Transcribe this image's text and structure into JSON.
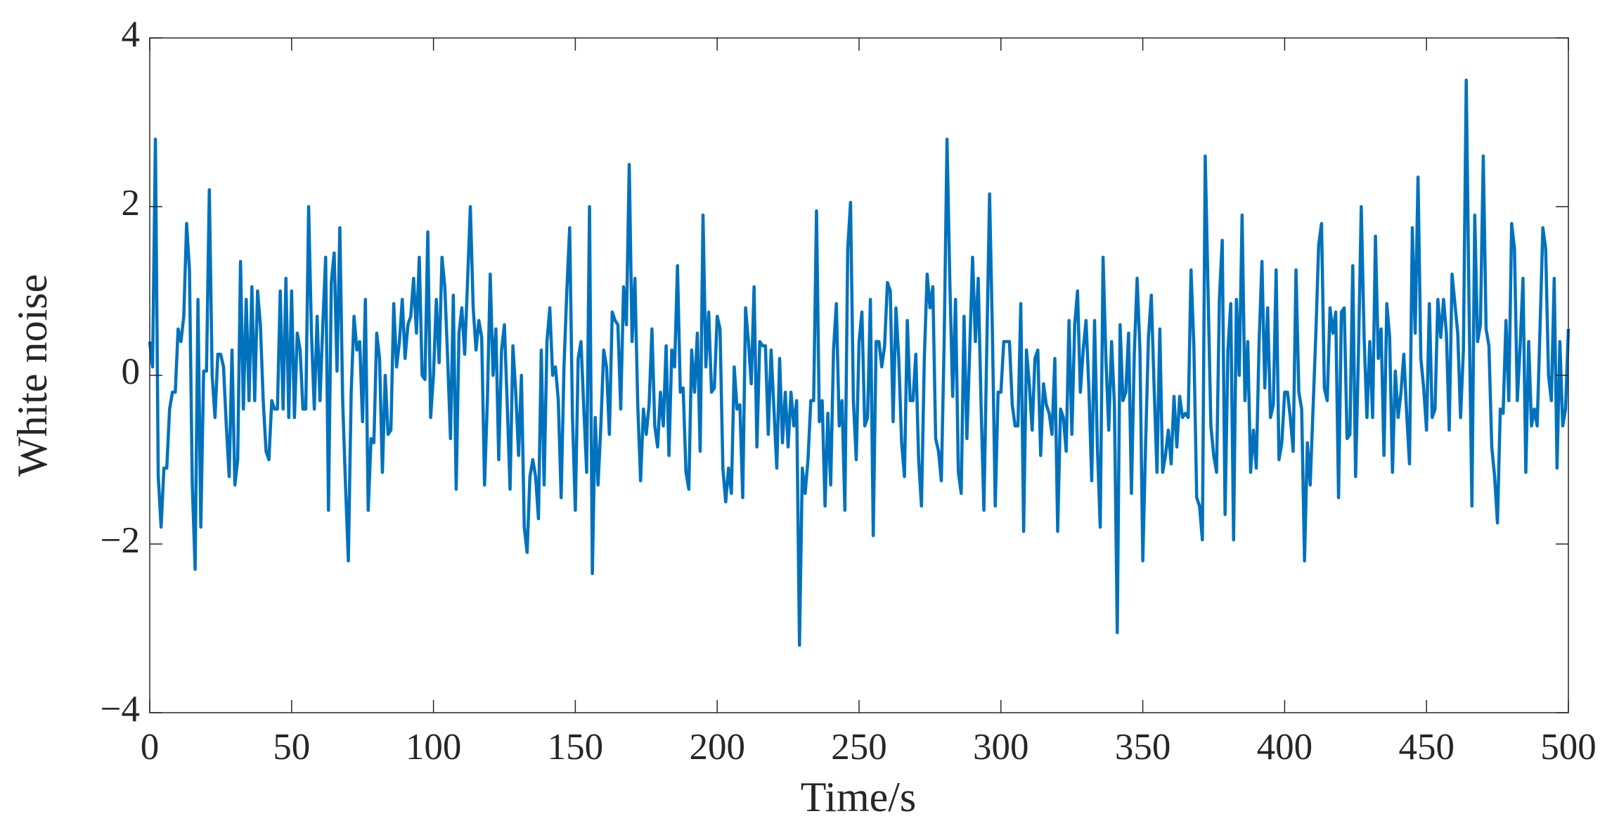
{
  "chart_data": {
    "type": "line",
    "xlabel": "Time/s",
    "ylabel": "White noise",
    "xlim": [
      0,
      500
    ],
    "ylim": [
      -4,
      4
    ],
    "xticks": [
      0,
      50,
      100,
      150,
      200,
      250,
      300,
      350,
      400,
      450,
      500
    ],
    "yticks": [
      {
        "value": -4,
        "label": "−4"
      },
      {
        "value": -2,
        "label": "−2"
      },
      0,
      2,
      4
    ],
    "x": [
      0,
      1,
      2,
      3,
      4,
      5,
      6,
      7,
      8,
      9,
      10,
      11,
      12,
      13,
      14,
      15,
      16,
      17,
      18,
      19,
      20,
      21,
      22,
      23,
      24,
      25,
      26,
      27,
      28,
      29,
      30,
      31,
      32,
      33,
      34,
      35,
      36,
      37,
      38,
      39,
      40,
      41,
      42,
      43,
      44,
      45,
      46,
      47,
      48,
      49,
      50,
      51,
      52,
      53,
      54,
      55,
      56,
      57,
      58,
      59,
      60,
      61,
      62,
      63,
      64,
      65,
      66,
      67,
      68,
      69,
      70,
      71,
      72,
      73,
      74,
      75,
      76,
      77,
      78,
      79,
      80,
      81,
      82,
      83,
      84,
      85,
      86,
      87,
      88,
      89,
      90,
      91,
      92,
      93,
      94,
      95,
      96,
      97,
      98,
      99,
      100,
      101,
      102,
      103,
      104,
      105,
      106,
      107,
      108,
      109,
      110,
      111,
      112,
      113,
      114,
      115,
      116,
      117,
      118,
      119,
      120,
      121,
      122,
      123,
      124,
      125,
      126,
      127,
      128,
      129,
      130,
      131,
      132,
      133,
      134,
      135,
      136,
      137,
      138,
      139,
      140,
      141,
      142,
      143,
      144,
      145,
      146,
      147,
      148,
      149,
      150,
      151,
      152,
      153,
      154,
      155,
      156,
      157,
      158,
      159,
      160,
      161,
      162,
      163,
      164,
      165,
      166,
      167,
      168,
      169,
      170,
      171,
      172,
      173,
      174,
      175,
      176,
      177,
      178,
      179,
      180,
      181,
      182,
      183,
      184,
      185,
      186,
      187,
      188,
      189,
      190,
      191,
      192,
      193,
      194,
      195,
      196,
      197,
      198,
      199,
      200,
      201,
      202,
      203,
      204,
      205,
      206,
      207,
      208,
      209,
      210,
      211,
      212,
      213,
      214,
      215,
      216,
      217,
      218,
      219,
      220,
      221,
      222,
      223,
      224,
      225,
      226,
      227,
      228,
      229,
      230,
      231,
      232,
      233,
      234,
      235,
      236,
      237,
      238,
      239,
      240,
      241,
      242,
      243,
      244,
      245,
      246,
      247,
      248,
      249,
      250,
      251,
      252,
      253,
      254,
      255,
      256,
      257,
      258,
      259,
      260,
      261,
      262,
      263,
      264,
      265,
      266,
      267,
      268,
      269,
      270,
      271,
      272,
      273,
      274,
      275,
      276,
      277,
      278,
      279,
      280,
      281,
      282,
      283,
      284,
      285,
      286,
      287,
      288,
      289,
      290,
      291,
      292,
      293,
      294,
      295,
      296,
      297,
      298,
      299,
      300,
      301,
      302,
      303,
      304,
      305,
      306,
      307,
      308,
      309,
      310,
      311,
      312,
      313,
      314,
      315,
      316,
      317,
      318,
      319,
      320,
      321,
      322,
      323,
      324,
      325,
      326,
      327,
      328,
      329,
      330,
      331,
      332,
      333,
      334,
      335,
      336,
      337,
      338,
      339,
      340,
      341,
      342,
      343,
      344,
      345,
      346,
      347,
      348,
      349,
      350,
      351,
      352,
      353,
      354,
      355,
      356,
      357,
      358,
      359,
      360,
      361,
      362,
      363,
      364,
      365,
      366,
      367,
      368,
      369,
      370,
      371,
      372,
      373,
      374,
      375,
      376,
      377,
      378,
      379,
      380,
      381,
      382,
      383,
      384,
      385,
      386,
      387,
      388,
      389,
      390,
      391,
      392,
      393,
      394,
      395,
      396,
      397,
      398,
      399,
      400,
      401,
      402,
      403,
      404,
      405,
      406,
      407,
      408,
      409,
      410,
      411,
      412,
      413,
      414,
      415,
      416,
      417,
      418,
      419,
      420,
      421,
      422,
      423,
      424,
      425,
      426,
      427,
      428,
      429,
      430,
      431,
      432,
      433,
      434,
      435,
      436,
      437,
      438,
      439,
      440,
      441,
      442,
      443,
      444,
      445,
      446,
      447,
      448,
      449,
      450,
      451,
      452,
      453,
      454,
      455,
      456,
      457,
      458,
      459,
      460,
      461,
      462,
      463,
      464,
      465,
      466,
      467,
      468,
      469,
      470,
      471,
      472,
      473,
      474,
      475,
      476,
      477,
      478,
      479,
      480,
      481,
      482,
      483,
      484,
      485,
      486,
      487,
      488,
      489,
      490,
      491,
      492,
      493,
      494,
      495,
      496,
      497,
      498,
      499,
      500
    ],
    "series": [
      {
        "color": "#0072BD",
        "values": [
          0.4,
          0.1,
          2.8,
          -1.2,
          -1.8,
          -1.1,
          -1.1,
          -0.4,
          -0.2,
          -0.2,
          0.55,
          0.4,
          0.7,
          1.8,
          1.25,
          -1.3,
          -2.3,
          0.9,
          -1.8,
          0.05,
          0.05,
          2.2,
          0.0,
          -0.5,
          0.25,
          0.25,
          0.1,
          -0.6,
          -1.2,
          0.3,
          -1.3,
          -1.0,
          1.35,
          -0.4,
          0.9,
          -0.3,
          1.05,
          -0.3,
          1.0,
          0.6,
          -0.3,
          -0.9,
          -1.0,
          -0.3,
          -0.4,
          -0.4,
          1.0,
          -0.4,
          1.15,
          -0.5,
          1.0,
          -0.5,
          0.5,
          0.3,
          -0.4,
          -0.4,
          2.0,
          0.5,
          -0.4,
          0.7,
          -0.3,
          0.6,
          1.4,
          -1.6,
          1.1,
          1.45,
          0.05,
          1.75,
          -0.3,
          -1.3,
          -2.2,
          -0.2,
          0.7,
          0.3,
          0.4,
          -0.55,
          0.9,
          -1.6,
          -0.75,
          -0.8,
          0.5,
          0.2,
          -1.15,
          0.0,
          -0.7,
          -0.65,
          0.85,
          0.1,
          0.4,
          0.9,
          0.2,
          0.6,
          0.7,
          1.15,
          0.5,
          1.4,
          0.0,
          -0.05,
          1.7,
          -0.5,
          0.0,
          0.9,
          0.15,
          1.4,
          1.05,
          0.2,
          -0.75,
          0.95,
          -1.35,
          0.5,
          0.8,
          0.25,
          1.1,
          2.0,
          0.8,
          0.3,
          0.65,
          0.45,
          -1.3,
          -0.3,
          1.2,
          0.0,
          0.55,
          -1.0,
          0.3,
          0.6,
          -0.35,
          -1.35,
          0.35,
          -0.2,
          -0.95,
          0.0,
          -1.8,
          -2.1,
          -1.2,
          -1.0,
          -1.2,
          -1.7,
          0.3,
          -1.3,
          0.4,
          0.8,
          0.0,
          0.1,
          -0.3,
          -1.45,
          0.1,
          1.0,
          1.75,
          -0.5,
          -1.6,
          0.2,
          0.4,
          -0.4,
          -1.15,
          2.0,
          -2.35,
          -0.5,
          -1.3,
          -0.6,
          0.3,
          0.1,
          -0.7,
          0.75,
          0.65,
          0.6,
          -0.4,
          1.05,
          0.6,
          2.5,
          0.4,
          1.15,
          -0.35,
          -1.25,
          -0.4,
          -0.7,
          -0.35,
          0.55,
          -0.6,
          -0.85,
          -0.2,
          -0.6,
          0.35,
          -0.95,
          0.3,
          0.1,
          1.3,
          -0.2,
          -0.15,
          -1.15,
          -1.35,
          0.3,
          -0.2,
          0.5,
          -0.9,
          1.9,
          0.1,
          0.75,
          -0.2,
          -0.15,
          0.7,
          0.55,
          -1.1,
          -1.5,
          -1.1,
          -1.4,
          0.1,
          -0.4,
          -0.35,
          -1.45,
          0.8,
          0.4,
          -0.1,
          1.05,
          -0.85,
          0.4,
          0.35,
          0.35,
          -0.7,
          0.3,
          -0.4,
          -1.1,
          0.2,
          -0.8,
          -0.2,
          -0.85,
          -0.2,
          -0.6,
          -0.3,
          -3.2,
          -1.1,
          -1.4,
          -1.0,
          -0.3,
          -0.3,
          1.95,
          -0.55,
          -0.3,
          -1.55,
          -0.45,
          -1.3,
          0.3,
          0.85,
          -0.6,
          -0.3,
          -1.6,
          1.5,
          2.05,
          -0.3,
          -1.0,
          0.4,
          0.75,
          -0.6,
          -0.5,
          0.9,
          -1.9,
          0.4,
          0.4,
          0.1,
          0.35,
          1.1,
          1.0,
          -0.55,
          0.8,
          0.2,
          -0.8,
          -1.2,
          0.65,
          -0.3,
          -0.3,
          0.25,
          -1.0,
          -1.55,
          0.2,
          1.2,
          0.8,
          1.05,
          -0.75,
          -0.9,
          -1.25,
          0.4,
          2.8,
          1.1,
          -0.25,
          0.9,
          -1.15,
          -1.4,
          0.7,
          -0.75,
          0.3,
          1.4,
          0.4,
          1.15,
          -0.35,
          -1.6,
          0.3,
          2.15,
          0.5,
          -1.55,
          -0.2,
          -0.2,
          0.4,
          0.4,
          0.4,
          -0.35,
          -0.6,
          -0.6,
          0.85,
          -1.85,
          0.3,
          -0.1,
          -0.65,
          0.2,
          0.3,
          -0.95,
          -0.1,
          -0.35,
          -0.45,
          -0.7,
          0.2,
          -1.85,
          -0.4,
          -0.5,
          -0.9,
          0.65,
          -0.7,
          0.6,
          1.0,
          -0.2,
          0.3,
          0.65,
          -0.15,
          -1.25,
          0.65,
          -0.85,
          -1.8,
          1.4,
          0.2,
          -0.65,
          0.4,
          -0.35,
          -3.05,
          0.6,
          -0.3,
          -0.2,
          0.5,
          -1.4,
          0.25,
          1.15,
          0.3,
          -2.2,
          -0.8,
          0.45,
          0.95,
          -0.15,
          -1.15,
          0.55,
          -1.15,
          -0.95,
          -0.65,
          -1.05,
          -0.25,
          -0.85,
          -0.25,
          -0.5,
          -0.45,
          -0.5,
          1.25,
          0.35,
          -1.45,
          -1.55,
          -1.95,
          2.6,
          1.0,
          -0.6,
          -0.95,
          -1.15,
          0.9,
          1.6,
          -1.65,
          0.3,
          0.85,
          -1.95,
          0.9,
          0.0,
          1.9,
          -0.3,
          0.4,
          -1.15,
          -0.65,
          -1.1,
          0.4,
          1.35,
          -0.15,
          0.8,
          -0.5,
          -0.35,
          1.25,
          -1.0,
          -0.8,
          -0.2,
          -0.2,
          -0.5,
          -0.9,
          1.25,
          -0.2,
          -0.4,
          -2.2,
          -0.8,
          -1.3,
          -0.4,
          0.5,
          1.55,
          1.8,
          -0.15,
          -0.3,
          0.8,
          0.5,
          0.75,
          -1.45,
          0.75,
          0.8,
          -0.75,
          -0.7,
          1.3,
          -1.2,
          0.25,
          2.0,
          0.45,
          -0.5,
          0.4,
          -0.5,
          1.65,
          0.2,
          0.55,
          -0.95,
          0.85,
          0.45,
          -1.15,
          0.05,
          -0.5,
          -0.2,
          0.25,
          -0.45,
          -1.05,
          1.75,
          0.5,
          2.35,
          0.2,
          -0.15,
          -0.65,
          0.85,
          -0.5,
          -0.4,
          0.9,
          0.45,
          0.9,
          0.5,
          -0.65,
          1.2,
          0.85,
          0.5,
          -0.5,
          0.3,
          3.5,
          0.8,
          -1.55,
          1.9,
          0.4,
          0.6,
          2.6,
          0.55,
          0.35,
          -0.85,
          -1.2,
          -1.75,
          -0.4,
          -0.45,
          0.65,
          -0.3,
          1.8,
          1.5,
          -0.3,
          0.35,
          1.15,
          -1.15,
          0.4,
          -0.6,
          -0.4,
          -0.6,
          0.55,
          1.75,
          1.5,
          0.0,
          -0.3,
          1.15,
          -1.1,
          0.4,
          -0.6,
          -0.4,
          0.55
        ]
      }
    ]
  }
}
